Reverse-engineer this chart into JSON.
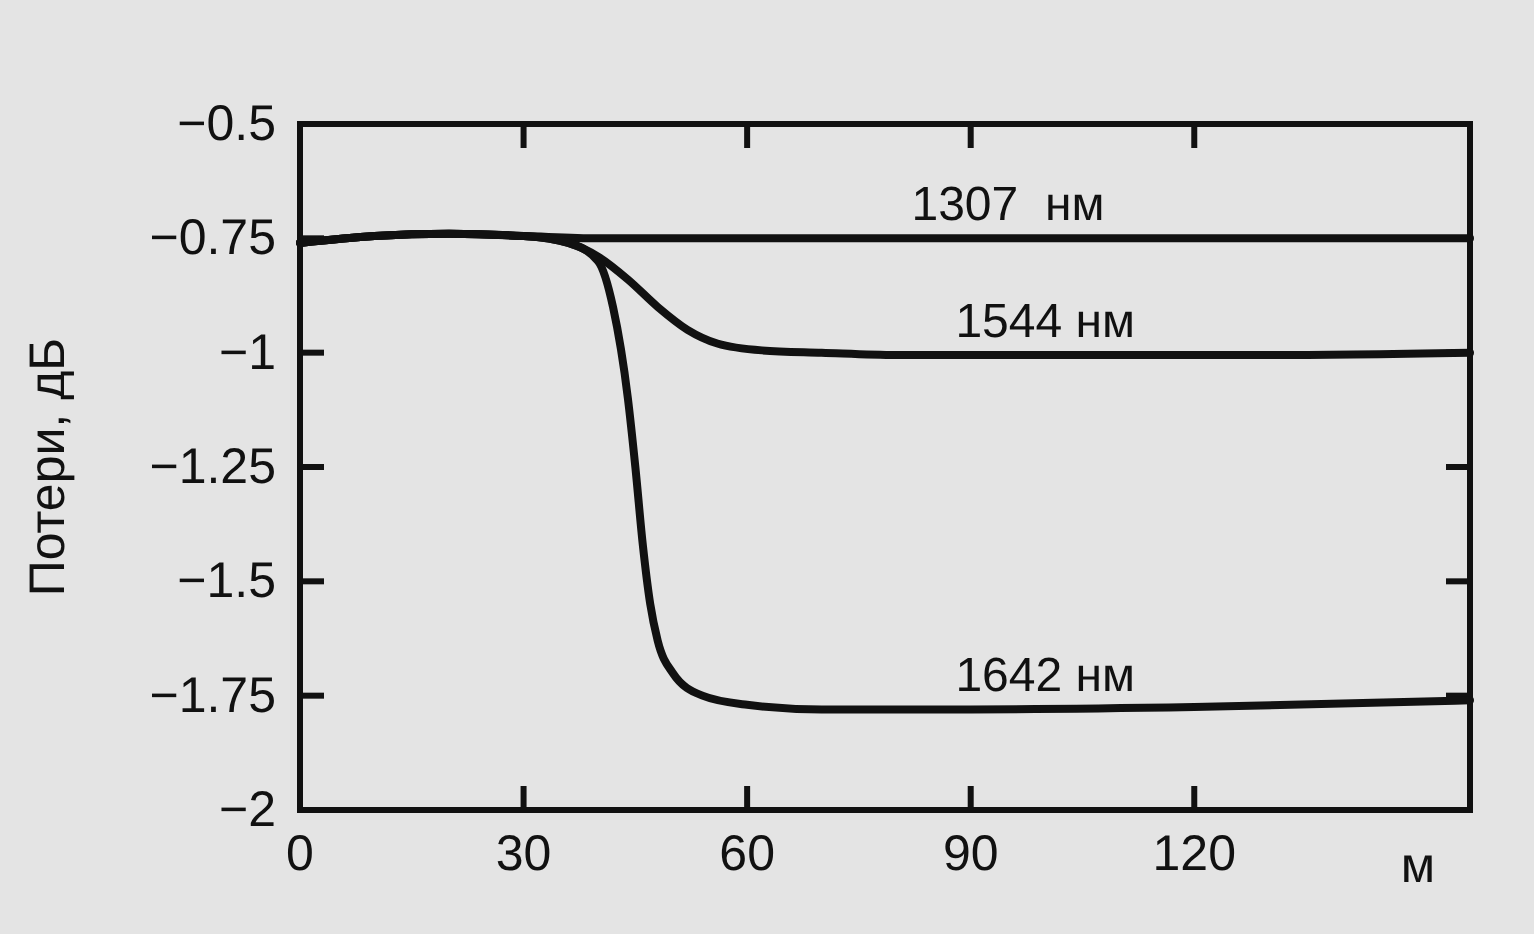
{
  "chart_data": {
    "type": "line",
    "xlabel": "м",
    "ylabel": "Потери, дБ",
    "xlim": [
      0,
      157
    ],
    "ylim": [
      -2,
      -0.5
    ],
    "xticks": [
      0,
      30,
      60,
      90,
      120
    ],
    "yticks": [
      -2,
      -1.75,
      -1.5,
      -1.25,
      -1,
      -0.75,
      -0.5
    ],
    "grid": false,
    "legend": "top",
    "marker": "none",
    "line_style": "solid",
    "series": [
      {
        "name": "1307  нм",
        "color": "#111111",
        "x": [
          0,
          10,
          20,
          30,
          40,
          60,
          90,
          120,
          157
        ],
        "values": [
          -0.76,
          -0.745,
          -0.74,
          -0.745,
          -0.75,
          -0.75,
          -0.75,
          -0.75,
          -0.75
        ]
      },
      {
        "name": "1544 нм",
        "color": "#111111",
        "x": [
          0,
          10,
          20,
          30,
          36,
          40,
          44,
          48,
          52,
          56,
          62,
          70,
          80,
          100,
          130,
          157
        ],
        "values": [
          -0.76,
          -0.745,
          -0.74,
          -0.745,
          -0.76,
          -0.79,
          -0.84,
          -0.9,
          -0.95,
          -0.98,
          -0.995,
          -1.0,
          -1.005,
          -1.005,
          -1.005,
          -1.0
        ]
      },
      {
        "name": "1642 нм",
        "color": "#111111",
        "x": [
          0,
          10,
          20,
          30,
          36,
          40,
          42,
          44,
          45,
          46,
          47,
          48,
          50,
          54,
          60,
          70,
          90,
          120,
          157
        ],
        "values": [
          -0.76,
          -0.745,
          -0.74,
          -0.745,
          -0.76,
          -0.8,
          -0.9,
          -1.1,
          -1.25,
          -1.42,
          -1.55,
          -1.63,
          -1.7,
          -1.75,
          -1.77,
          -1.78,
          -1.78,
          -1.775,
          -1.76
        ]
      }
    ]
  }
}
